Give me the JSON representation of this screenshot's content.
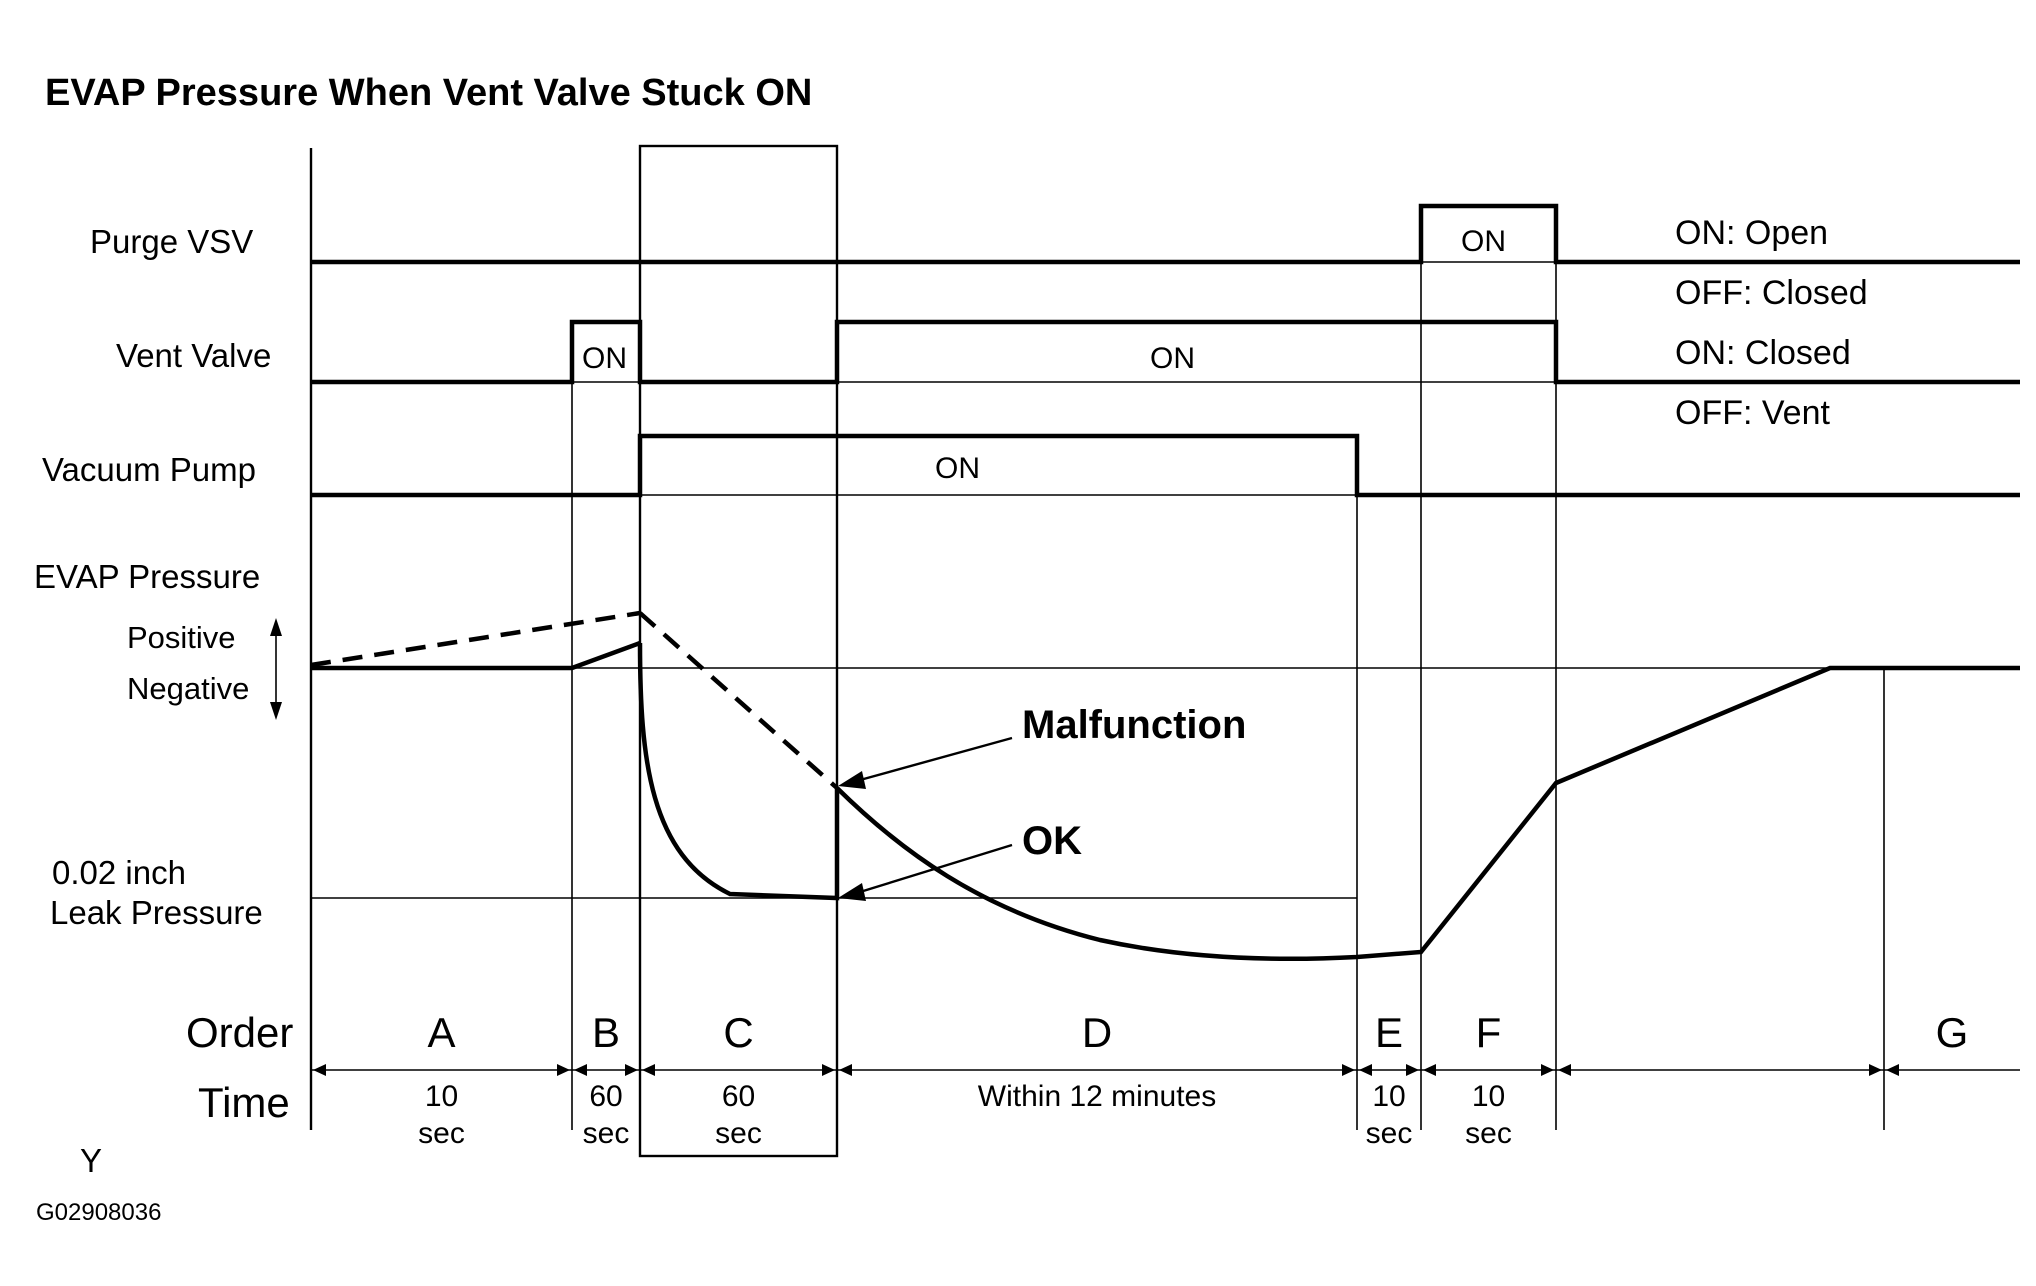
{
  "title": "EVAP Pressure When Vent Valve Stuck ON",
  "signals": {
    "purge_vsv": "Purge VSV",
    "vent_valve": "Vent Valve",
    "vacuum_pump": "Vacuum Pump",
    "evap_pressure": "EVAP Pressure",
    "positive": "Positive",
    "negative": "Negative",
    "leak_line1": "0.02 inch",
    "leak_line2": "Leak Pressure"
  },
  "on_label": "ON",
  "legend": {
    "purge_on": "ON: Open",
    "purge_off": "OFF: Closed",
    "vent_on": "ON: Closed",
    "vent_off": "OFF: Vent"
  },
  "callouts": {
    "malfunction": "Malfunction",
    "ok": "OK"
  },
  "row_labels": {
    "order": "Order",
    "time": "Time"
  },
  "phases": [
    {
      "order": "A",
      "time1": "10",
      "time2": "sec"
    },
    {
      "order": "B",
      "time1": "60",
      "time2": "sec"
    },
    {
      "order": "C",
      "time1": "60",
      "time2": "sec"
    },
    {
      "order": "D",
      "time1": "Within 12 minutes",
      "time2": ""
    },
    {
      "order": "E",
      "time1": "10",
      "time2": "sec"
    },
    {
      "order": "F",
      "time1": "10",
      "time2": "sec"
    },
    {
      "order": "",
      "time1": "",
      "time2": ""
    },
    {
      "order": "G",
      "time1": "",
      "time2": ""
    }
  ],
  "footer": {
    "mark": "Y",
    "figure_id": "G02908036"
  }
}
